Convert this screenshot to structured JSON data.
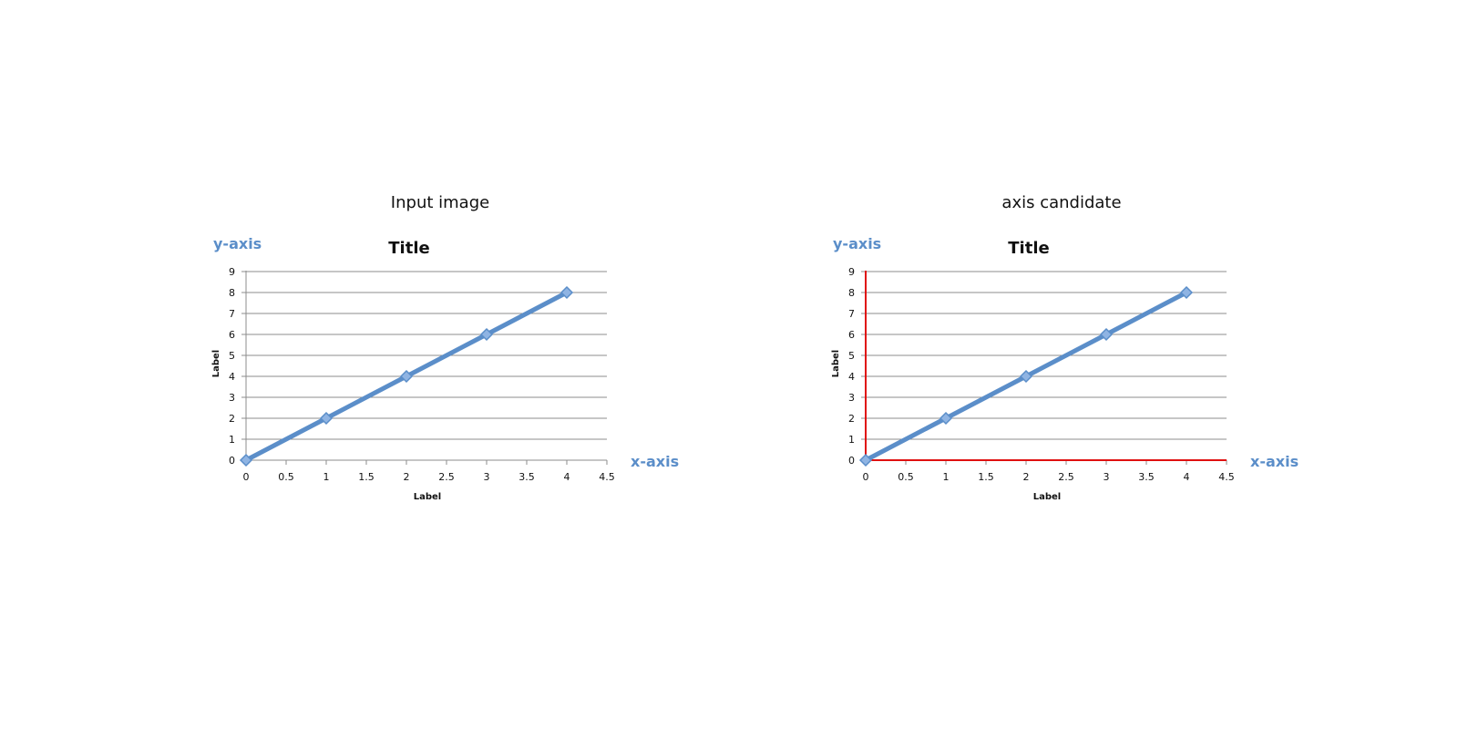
{
  "panels": [
    {
      "caption": "Input image",
      "show_axis_candidate": false
    },
    {
      "caption": "axis candidate",
      "show_axis_candidate": true
    }
  ],
  "chart_data": [
    {
      "type": "line",
      "title": "Title",
      "xlabel": "Label",
      "ylabel": "Label",
      "x_axis_tag": "x-axis",
      "y_axis_tag": "y-axis",
      "x": [
        0,
        1,
        2,
        3,
        4
      ],
      "series": [
        {
          "values": [
            0,
            2,
            4,
            6,
            8
          ]
        }
      ],
      "xlim": [
        0,
        4.5
      ],
      "ylim": [
        0,
        9
      ],
      "x_ticks": [
        "0",
        "0.5",
        "1",
        "1.5",
        "2",
        "2.5",
        "3",
        "3.5",
        "4",
        "4.5"
      ],
      "y_ticks": [
        "0",
        "1",
        "2",
        "3",
        "4",
        "5",
        "6",
        "7",
        "8",
        "9"
      ],
      "grid": true,
      "line_color": "#5b8ec9",
      "axis_tag_color": "#5b8ec9"
    },
    {
      "type": "line",
      "title": "Title",
      "xlabel": "Label",
      "ylabel": "Label",
      "x_axis_tag": "x-axis",
      "y_axis_tag": "y-axis",
      "x": [
        0,
        1,
        2,
        3,
        4
      ],
      "series": [
        {
          "values": [
            0,
            2,
            4,
            6,
            8
          ]
        }
      ],
      "xlim": [
        0,
        4.5
      ],
      "ylim": [
        0,
        9
      ],
      "x_ticks": [
        "0",
        "0.5",
        "1",
        "1.5",
        "2",
        "2.5",
        "3",
        "3.5",
        "4",
        "4.5"
      ],
      "y_ticks": [
        "0",
        "1",
        "2",
        "3",
        "4",
        "5",
        "6",
        "7",
        "8",
        "9"
      ],
      "grid": true,
      "line_color": "#5b8ec9",
      "axis_tag_color": "#5b8ec9",
      "axis_candidate_color": "#e01010"
    }
  ]
}
